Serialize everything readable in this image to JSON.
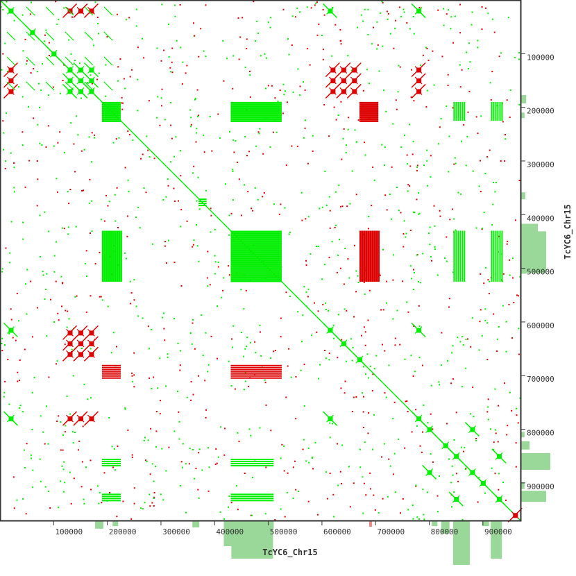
{
  "chart_data": {
    "type": "scatter",
    "subtype": "dotplot",
    "title": "",
    "xlabel": "TcYC6_Chr15",
    "ylabel": "TcYC6_Chr15",
    "xlim": [
      0,
      970000
    ],
    "ylim": [
      0,
      970000
    ],
    "y_direction": "top-to-bottom",
    "grid": false,
    "x_ticks": [
      100000,
      200000,
      300000,
      400000,
      500000,
      600000,
      700000,
      800000,
      900000
    ],
    "y_ticks": [
      100000,
      200000,
      300000,
      400000,
      500000,
      600000,
      700000,
      800000,
      900000
    ],
    "x_tick_labels": [
      "100000",
      "200000",
      "300000",
      "400000",
      "500000",
      "600000",
      "700000",
      "800000",
      "900000"
    ],
    "y_tick_labels": [
      "100000",
      "200000",
      "300000",
      "400000",
      "500000",
      "600000",
      "700000",
      "800000",
      "900000"
    ],
    "colors": {
      "forward": "#00ee00",
      "reverse": "#dd0000",
      "coverage": "#99d899",
      "coverage_reverse": "#ee8888",
      "frame": "#333333"
    },
    "series": [
      {
        "name": "diagonal",
        "strand": "forward",
        "segments": [
          [
            0,
            0,
            970000,
            970000
          ]
        ]
      },
      {
        "name": "repeat-blocks-forward",
        "strand": "forward",
        "blocks": [
          [
            190000,
            190000,
            225000,
            225000
          ],
          [
            430000,
            430000,
            525000,
            525000
          ],
          [
            190000,
            430000,
            225000,
            525000
          ],
          [
            430000,
            190000,
            525000,
            225000
          ],
          [
            370000,
            370000,
            385000,
            385000
          ],
          [
            430000,
            855000,
            510000,
            870000
          ],
          [
            430000,
            920000,
            510000,
            935000
          ],
          [
            190000,
            855000,
            225000,
            870000
          ],
          [
            190000,
            920000,
            225000,
            935000
          ],
          [
            845000,
            430000,
            865000,
            525000
          ],
          [
            915000,
            430000,
            935000,
            525000
          ],
          [
            845000,
            190000,
            865000,
            225000
          ],
          [
            915000,
            190000,
            935000,
            225000
          ]
        ]
      },
      {
        "name": "repeat-blocks-reverse",
        "strand": "reverse",
        "blocks": [
          [
            670000,
            430000,
            705000,
            525000
          ],
          [
            670000,
            190000,
            705000,
            225000
          ],
          [
            190000,
            680000,
            225000,
            705000
          ],
          [
            430000,
            680000,
            525000,
            705000
          ]
        ]
      },
      {
        "name": "cluster-forward",
        "strand": "forward",
        "centers": [
          [
            20000,
            20000
          ],
          [
            60000,
            60000
          ],
          [
            100000,
            100000
          ],
          [
            130000,
            130000
          ],
          [
            150000,
            150000
          ],
          [
            170000,
            170000
          ],
          [
            130000,
            150000
          ],
          [
            150000,
            130000
          ],
          [
            130000,
            170000
          ],
          [
            170000,
            130000
          ],
          [
            150000,
            170000
          ],
          [
            170000,
            150000
          ],
          [
            800000,
            800000
          ],
          [
            830000,
            830000
          ],
          [
            850000,
            850000
          ],
          [
            880000,
            880000
          ],
          [
            900000,
            900000
          ],
          [
            930000,
            930000
          ],
          [
            800000,
            880000
          ],
          [
            880000,
            800000
          ],
          [
            850000,
            930000
          ],
          [
            930000,
            850000
          ],
          [
            615000,
            615000
          ],
          [
            640000,
            640000
          ],
          [
            670000,
            670000
          ],
          [
            780000,
            780000
          ],
          [
            615000,
            20000
          ],
          [
            20000,
            615000
          ],
          [
            615000,
            780000
          ],
          [
            780000,
            615000
          ],
          [
            20000,
            780000
          ],
          [
            780000,
            20000
          ]
        ]
      },
      {
        "name": "cluster-reverse",
        "strand": "reverse",
        "centers": [
          [
            130000,
            20000
          ],
          [
            150000,
            20000
          ],
          [
            170000,
            20000
          ],
          [
            20000,
            130000
          ],
          [
            20000,
            150000
          ],
          [
            20000,
            170000
          ],
          [
            620000,
            130000
          ],
          [
            640000,
            130000
          ],
          [
            660000,
            130000
          ],
          [
            620000,
            150000
          ],
          [
            640000,
            150000
          ],
          [
            660000,
            150000
          ],
          [
            620000,
            170000
          ],
          [
            640000,
            170000
          ],
          [
            660000,
            170000
          ],
          [
            780000,
            130000
          ],
          [
            780000,
            150000
          ],
          [
            780000,
            170000
          ],
          [
            130000,
            620000
          ],
          [
            150000,
            620000
          ],
          [
            170000,
            620000
          ],
          [
            130000,
            640000
          ],
          [
            150000,
            640000
          ],
          [
            170000,
            640000
          ],
          [
            130000,
            660000
          ],
          [
            150000,
            660000
          ],
          [
            170000,
            660000
          ],
          [
            130000,
            780000
          ],
          [
            150000,
            780000
          ],
          [
            170000,
            780000
          ],
          [
            960000,
            960000
          ]
        ]
      }
    ]
  }
}
